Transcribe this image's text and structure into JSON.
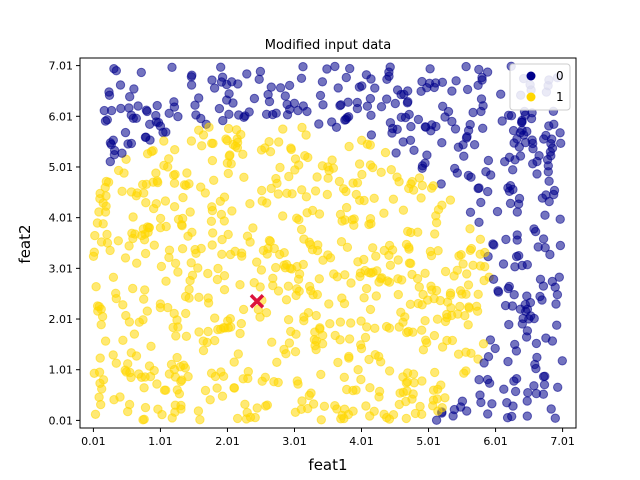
{
  "chart_data": {
    "type": "scatter",
    "title": "Modified input data",
    "xlabel": "feat1",
    "ylabel": "feat2",
    "xlim": [
      -0.19,
      7.21
    ],
    "ylim": [
      -0.14,
      7.16
    ],
    "x_ticks": [
      "0.01",
      "1.01",
      "2.01",
      "3.01",
      "4.01",
      "5.01",
      "6.01",
      "7.01"
    ],
    "y_ticks": [
      "0.01",
      "1.01",
      "2.01",
      "3.01",
      "4.01",
      "5.01",
      "6.01",
      "7.01"
    ],
    "grid": false,
    "legend": {
      "placement": "top-right",
      "entries": [
        "0",
        "1"
      ]
    },
    "decision_rule": "class 0 if (feat1 - 2.5)^2 + (feat2 - 2.4)^2 > 3.5^2 approximately (circular boundary)",
    "series": [
      {
        "name": "0",
        "color": "#00008b",
        "region": "outside circle",
        "count": 480
      },
      {
        "name": "1",
        "color": "#ffd700",
        "region": "inside circle",
        "count": 570
      }
    ],
    "highlight": {
      "marker": "x",
      "color": "#dc143c",
      "x": 2.45,
      "y": 2.36
    }
  },
  "colors": {
    "class0": "#00008b",
    "class1": "#ffd700",
    "highlight": "#dc143c"
  }
}
